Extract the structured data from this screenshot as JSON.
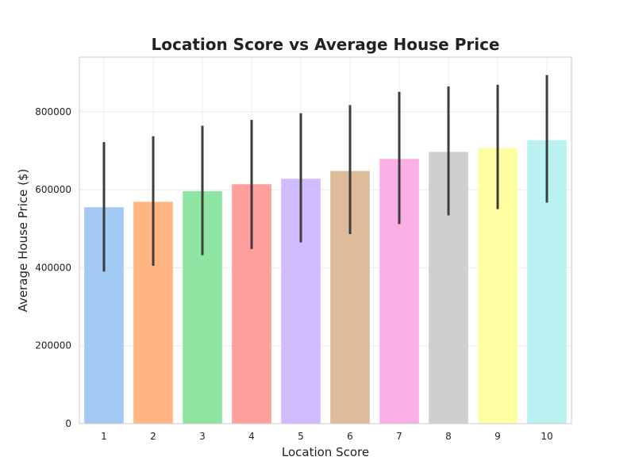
{
  "chart_data": {
    "type": "bar",
    "title": "Location Score vs Average House Price",
    "xlabel": "Location Score",
    "ylabel": "Average House Price ($)",
    "categories": [
      "1",
      "2",
      "3",
      "4",
      "5",
      "6",
      "7",
      "8",
      "9",
      "10"
    ],
    "values": [
      555000,
      569000,
      596000,
      614000,
      628000,
      648000,
      679000,
      697000,
      707000,
      727000
    ],
    "error_low": [
      390000,
      405000,
      432000,
      448000,
      465000,
      486000,
      512000,
      534000,
      550000,
      567000
    ],
    "error_high": [
      722000,
      737000,
      764000,
      779000,
      796000,
      817000,
      851000,
      865000,
      869000,
      894000
    ],
    "ylim": [
      0,
      940000
    ],
    "yticks": [
      0,
      200000,
      400000,
      600000,
      800000
    ],
    "grid": true,
    "colors": [
      "#a1c9f4",
      "#ffb482",
      "#8de5a1",
      "#ff9f9b",
      "#d0bbff",
      "#debb9b",
      "#fab0e4",
      "#cfcfcf",
      "#fffea3",
      "#b9f2f0"
    ],
    "error_color": "#3d3d3d",
    "grid_color": "#ebebeb",
    "spine_color": "#cccccc"
  }
}
